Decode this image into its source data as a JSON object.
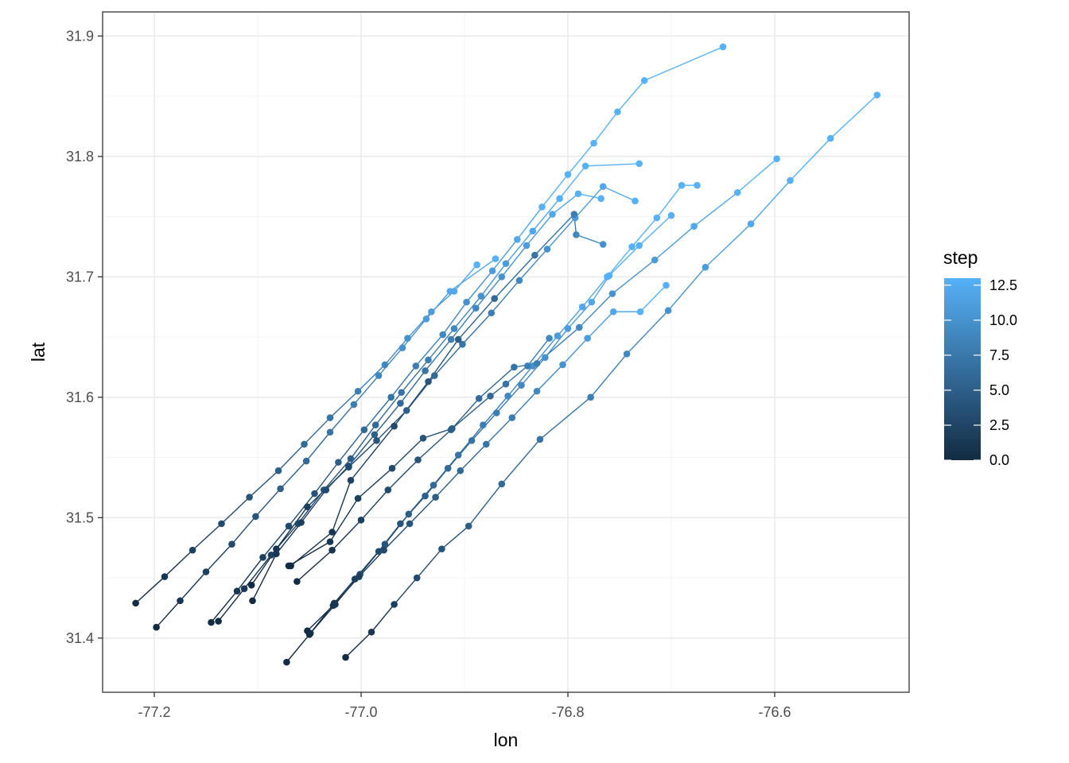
{
  "chart_data": {
    "type": "scatter",
    "xlabel": "lon",
    "ylabel": "lat",
    "xlim": [
      -77.25,
      -76.47
    ],
    "ylim": [
      31.355,
      31.92
    ],
    "x_ticks": [
      {
        "value": -77.2,
        "label": "-77.2"
      },
      {
        "value": -77.0,
        "label": "-77.0"
      },
      {
        "value": -76.8,
        "label": "-76.8"
      },
      {
        "value": -76.6,
        "label": "-76.6"
      }
    ],
    "y_ticks": [
      {
        "value": 31.4,
        "label": "31.4"
      },
      {
        "value": 31.5,
        "label": "31.5"
      },
      {
        "value": 31.6,
        "label": "31.6"
      },
      {
        "value": 31.7,
        "label": "31.7"
      },
      {
        "value": 31.8,
        "label": "31.8"
      },
      {
        "value": 31.9,
        "label": "31.9"
      }
    ],
    "grid": true,
    "legend_position": "right",
    "color_scale": {
      "title": "step",
      "min": 0,
      "max": 13,
      "low_color": "#132b43",
      "high_color": "#56b1f7",
      "ticks": [
        {
          "value": 0,
          "label": "0.0"
        },
        {
          "value": 2.5,
          "label": "2.5"
        },
        {
          "value": 5,
          "label": "5.0"
        },
        {
          "value": 7.5,
          "label": "7.5"
        },
        {
          "value": 10,
          "label": "10.0"
        },
        {
          "value": 12.5,
          "label": "12.5"
        }
      ]
    },
    "tracks": [
      {
        "points": [
          [
            -77.218,
            31.429
          ],
          [
            -77.19,
            31.451
          ],
          [
            -77.163,
            31.473
          ],
          [
            -77.135,
            31.495
          ],
          [
            -77.108,
            31.517
          ],
          [
            -77.08,
            31.539
          ],
          [
            -77.055,
            31.561
          ],
          [
            -77.03,
            31.583
          ],
          [
            -77.003,
            31.605
          ],
          [
            -76.977,
            31.627
          ],
          [
            -76.955,
            31.649
          ],
          [
            -76.932,
            31.671
          ],
          [
            -76.91,
            31.688
          ],
          [
            -76.888,
            31.71
          ]
        ]
      },
      {
        "points": [
          [
            -77.198,
            31.409
          ],
          [
            -77.175,
            31.431
          ],
          [
            -77.15,
            31.455
          ],
          [
            -77.125,
            31.478
          ],
          [
            -77.102,
            31.501
          ],
          [
            -77.078,
            31.524
          ],
          [
            -77.053,
            31.547
          ],
          [
            -77.03,
            31.571
          ],
          [
            -77.007,
            31.594
          ],
          [
            -76.983,
            31.618
          ],
          [
            -76.96,
            31.641
          ],
          [
            -76.937,
            31.665
          ],
          [
            -76.914,
            31.688
          ],
          [
            -76.87,
            31.715
          ]
        ]
      },
      {
        "points": [
          [
            -77.145,
            31.413
          ],
          [
            -77.12,
            31.439
          ],
          [
            -77.095,
            31.467
          ],
          [
            -77.07,
            31.493
          ],
          [
            -77.045,
            31.52
          ],
          [
            -77.022,
            31.546
          ],
          [
            -76.997,
            31.573
          ],
          [
            -76.971,
            31.6
          ],
          [
            -76.947,
            31.626
          ],
          [
            -76.921,
            31.652
          ],
          [
            -76.898,
            31.679
          ],
          [
            -76.873,
            31.705
          ],
          [
            -76.849,
            31.731
          ],
          [
            -76.825,
            31.758
          ],
          [
            -76.8,
            31.785
          ],
          [
            -76.775,
            31.811
          ],
          [
            -76.752,
            31.837
          ],
          [
            -76.726,
            31.863
          ],
          [
            -76.65,
            31.891
          ]
        ]
      },
      {
        "points": [
          [
            -77.138,
            31.414
          ],
          [
            -77.113,
            31.441
          ],
          [
            -77.087,
            31.469
          ],
          [
            -77.061,
            31.495
          ],
          [
            -77.036,
            31.523
          ],
          [
            -77.01,
            31.549
          ],
          [
            -76.986,
            31.577
          ],
          [
            -76.961,
            31.604
          ],
          [
            -76.935,
            31.631
          ],
          [
            -76.91,
            31.657
          ],
          [
            -76.884,
            31.684
          ],
          [
            -76.86,
            31.711
          ],
          [
            -76.834,
            31.738
          ],
          [
            -76.808,
            31.765
          ],
          [
            -76.783,
            31.792
          ],
          [
            -76.731,
            31.794
          ]
        ]
      },
      {
        "points": [
          [
            -77.105,
            31.431
          ],
          [
            -77.082,
            31.47
          ],
          [
            -77.058,
            31.496
          ],
          [
            -77.034,
            31.523
          ],
          [
            -77.012,
            31.543
          ],
          [
            -76.987,
            31.569
          ],
          [
            -76.962,
            31.595
          ],
          [
            -76.938,
            31.622
          ],
          [
            -76.913,
            31.648
          ],
          [
            -76.889,
            31.674
          ],
          [
            -76.864,
            31.7
          ],
          [
            -76.84,
            31.726
          ],
          [
            -76.815,
            31.752
          ],
          [
            -76.79,
            31.769
          ],
          [
            -76.768,
            31.765
          ]
        ]
      },
      {
        "points": [
          [
            -77.106,
            31.444
          ],
          [
            -77.082,
            31.474
          ],
          [
            -77.052,
            31.509
          ],
          [
            -77.012,
            31.542
          ],
          [
            -76.985,
            31.564
          ],
          [
            -76.956,
            31.589
          ],
          [
            -76.929,
            31.618
          ],
          [
            -76.902,
            31.644
          ],
          [
            -76.874,
            31.67
          ],
          [
            -76.847,
            31.697
          ],
          [
            -76.82,
            31.723
          ],
          [
            -76.793,
            31.749
          ],
          [
            -76.766,
            31.775
          ],
          [
            -76.735,
            31.763
          ]
        ]
      },
      {
        "points": [
          [
            -77.072,
            31.38
          ],
          [
            -77.049,
            31.404
          ],
          [
            -77.025,
            31.428
          ],
          [
            -77.001,
            31.453
          ],
          [
            -76.977,
            31.478
          ],
          [
            -76.954,
            31.503
          ],
          [
            -76.93,
            31.527
          ],
          [
            -76.906,
            31.552
          ],
          [
            -76.882,
            31.577
          ],
          [
            -76.858,
            31.601
          ],
          [
            -76.834,
            31.626
          ],
          [
            -76.81,
            31.651
          ],
          [
            -76.786,
            31.675
          ],
          [
            -76.762,
            31.7
          ],
          [
            -76.738,
            31.725
          ],
          [
            -76.714,
            31.749
          ],
          [
            -76.69,
            31.776
          ],
          [
            -76.675,
            31.776
          ]
        ]
      },
      {
        "points": [
          [
            -77.015,
            31.384
          ],
          [
            -76.99,
            31.405
          ],
          [
            -76.968,
            31.428
          ],
          [
            -76.946,
            31.45
          ],
          [
            -76.922,
            31.474
          ],
          [
            -76.896,
            31.493
          ],
          [
            -76.864,
            31.528
          ],
          [
            -76.827,
            31.565
          ],
          [
            -76.778,
            31.6
          ],
          [
            -76.743,
            31.636
          ],
          [
            -76.703,
            31.672
          ],
          [
            -76.667,
            31.708
          ],
          [
            -76.623,
            31.744
          ],
          [
            -76.585,
            31.78
          ],
          [
            -76.546,
            31.815
          ],
          [
            -76.501,
            31.851
          ]
        ]
      },
      {
        "points": [
          [
            -77.052,
            31.406
          ],
          [
            -77.027,
            31.427
          ],
          [
            -77.002,
            31.451
          ],
          [
            -76.978,
            31.473
          ],
          [
            -76.953,
            31.495
          ],
          [
            -76.928,
            31.517
          ],
          [
            -76.904,
            31.539
          ],
          [
            -76.879,
            31.561
          ],
          [
            -76.854,
            31.583
          ],
          [
            -76.83,
            31.605
          ],
          [
            -76.805,
            31.627
          ],
          [
            -76.781,
            31.649
          ],
          [
            -76.756,
            31.671
          ],
          [
            -76.73,
            31.671
          ],
          [
            -76.705,
            31.693
          ]
        ]
      },
      {
        "points": [
          [
            -77.05,
            31.403
          ],
          [
            -77.026,
            31.429
          ],
          [
            -77.006,
            31.449
          ],
          [
            -76.983,
            31.472
          ],
          [
            -76.962,
            31.495
          ],
          [
            -76.938,
            31.518
          ],
          [
            -76.916,
            31.541
          ],
          [
            -76.893,
            31.564
          ],
          [
            -76.869,
            31.587
          ],
          [
            -76.845,
            31.61
          ],
          [
            -76.822,
            31.633
          ],
          [
            -76.8,
            31.657
          ],
          [
            -76.777,
            31.679
          ],
          [
            -76.76,
            31.701
          ],
          [
            -76.731,
            31.726
          ],
          [
            -76.7,
            31.751
          ]
        ]
      },
      {
        "points": [
          [
            -77.062,
            31.447
          ],
          [
            -77.028,
            31.473
          ],
          [
            -77.0,
            31.498
          ],
          [
            -76.974,
            31.523
          ],
          [
            -76.945,
            31.548
          ],
          [
            -76.913,
            31.573
          ],
          [
            -76.886,
            31.599
          ],
          [
            -76.852,
            31.625
          ],
          [
            -76.83,
            31.628
          ],
          [
            -76.789,
            31.658
          ],
          [
            -76.757,
            31.686
          ],
          [
            -76.716,
            31.714
          ],
          [
            -76.678,
            31.742
          ],
          [
            -76.636,
            31.77
          ],
          [
            -76.598,
            31.798
          ]
        ]
      },
      {
        "points": [
          [
            -77.068,
            31.46
          ],
          [
            -77.028,
            31.488
          ],
          [
            -77.01,
            31.531
          ],
          [
            -76.968,
            31.576
          ],
          [
            -76.935,
            31.613
          ],
          [
            -76.906,
            31.648
          ],
          [
            -76.871,
            31.682
          ],
          [
            -76.832,
            31.718
          ],
          [
            -76.794,
            31.752
          ],
          [
            -76.792,
            31.735
          ],
          [
            -76.766,
            31.727
          ]
        ]
      },
      {
        "points": [
          [
            -77.07,
            31.46
          ],
          [
            -77.03,
            31.48
          ],
          [
            -77.003,
            31.516
          ],
          [
            -76.97,
            31.541
          ],
          [
            -76.94,
            31.566
          ],
          [
            -76.912,
            31.574
          ],
          [
            -76.875,
            31.601
          ],
          [
            -76.86,
            31.611
          ],
          [
            -76.839,
            31.626
          ],
          [
            -76.818,
            31.649
          ]
        ]
      }
    ]
  }
}
